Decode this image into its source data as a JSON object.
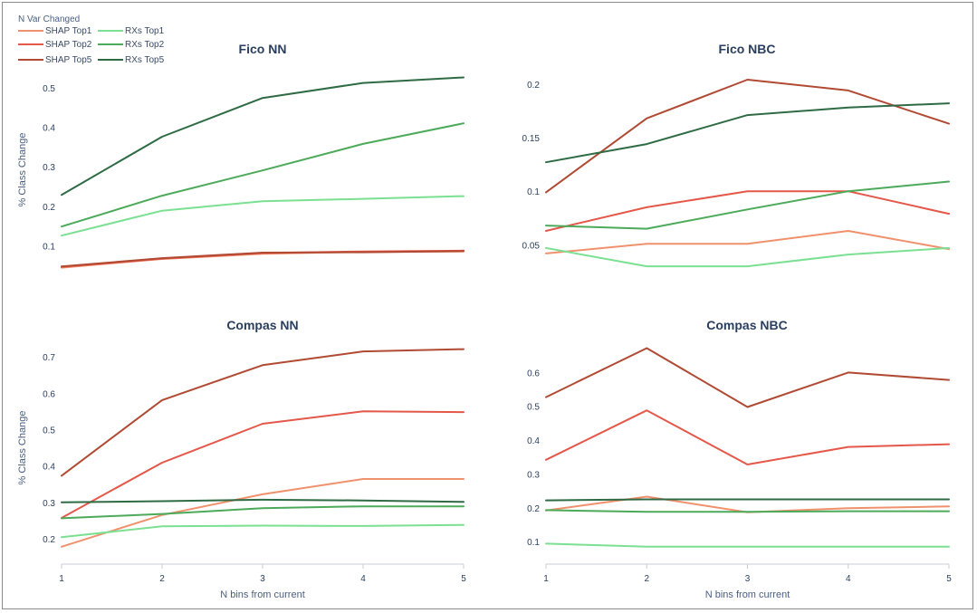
{
  "legend": {
    "title": "N Var Changed",
    "entries": [
      {
        "name": "SHAP Top1",
        "color": "#f0916e"
      },
      {
        "name": "SHAP Top2",
        "color": "#e4584a"
      },
      {
        "name": "SHAP Top5",
        "color": "#b04a33"
      },
      {
        "name": "RXs Top1",
        "color": "#7be092"
      },
      {
        "name": "RXs Top2",
        "color": "#4caa5a"
      },
      {
        "name": "RXs Top5",
        "color": "#2e6b44"
      }
    ]
  },
  "x_axis_title": "N bins from current",
  "y_axis_title": "% Class Change",
  "chart_data": [
    {
      "type": "line",
      "title": "Fico NN",
      "x": [
        1,
        2,
        3,
        4,
        5
      ],
      "ylim": [
        0.035,
        0.55
      ],
      "yticks": [
        0.1,
        0.2,
        0.3,
        0.4,
        0.5
      ],
      "yticklabels": [
        "0.1",
        "0.2",
        "0.3",
        "0.4",
        "0.5"
      ],
      "xticklabels": [],
      "ylabel": "% Class Change",
      "xlabel": "",
      "series": [
        {
          "name": "SHAP Top1",
          "values": [
            0.045,
            0.067,
            0.08,
            0.085,
            0.086
          ]
        },
        {
          "name": "SHAP Top2",
          "values": [
            0.047,
            0.068,
            0.082,
            0.086,
            0.088
          ]
        },
        {
          "name": "SHAP Top5",
          "values": [
            0.048,
            0.069,
            0.083,
            0.084,
            0.087
          ]
        },
        {
          "name": "RXs Top1",
          "values": [
            0.126,
            0.189,
            0.213,
            0.219,
            0.226
          ]
        },
        {
          "name": "RXs Top2",
          "values": [
            0.149,
            0.227,
            0.291,
            0.358,
            0.41
          ]
        },
        {
          "name": "RXs Top5",
          "values": [
            0.229,
            0.376,
            0.474,
            0.512,
            0.526
          ]
        }
      ]
    },
    {
      "type": "line",
      "title": "Fico NBC",
      "x": [
        1,
        2,
        3,
        4,
        5
      ],
      "ylim": [
        0.025,
        0.215
      ],
      "yticks": [
        0.05,
        0.1,
        0.15,
        0.2
      ],
      "yticklabels": [
        "0.05",
        "0.1",
        "0.15",
        "0.2"
      ],
      "xticklabels": [],
      "ylabel": "",
      "xlabel": "",
      "series": [
        {
          "name": "SHAP Top1",
          "values": [
            0.042,
            0.051,
            0.051,
            0.063,
            0.046
          ]
        },
        {
          "name": "SHAP Top2",
          "values": [
            0.063,
            0.085,
            0.1,
            0.1,
            0.079
          ]
        },
        {
          "name": "SHAP Top5",
          "values": [
            0.099,
            0.168,
            0.204,
            0.194,
            0.163
          ]
        },
        {
          "name": "RXs Top1",
          "values": [
            0.047,
            0.03,
            0.03,
            0.041,
            0.047
          ]
        },
        {
          "name": "RXs Top2",
          "values": [
            0.068,
            0.065,
            0.083,
            0.1,
            0.109
          ]
        },
        {
          "name": "RXs Top5",
          "values": [
            0.127,
            0.144,
            0.171,
            0.178,
            0.182
          ]
        }
      ]
    },
    {
      "type": "line",
      "title": "Compas NN",
      "x": [
        1,
        2,
        3,
        4,
        5
      ],
      "ylim": [
        0.15,
        0.75
      ],
      "yticks": [
        0.2,
        0.3,
        0.4,
        0.5,
        0.6,
        0.7
      ],
      "yticklabels": [
        "0.2",
        "0.3",
        "0.4",
        "0.5",
        "0.6",
        "0.7"
      ],
      "xticklabels": [
        "1",
        "2",
        "3",
        "4",
        "5"
      ],
      "ylabel": "% Class Change",
      "xlabel": "N bins from current",
      "series": [
        {
          "name": "SHAP Top1",
          "values": [
            0.178,
            0.265,
            0.322,
            0.364,
            0.364
          ]
        },
        {
          "name": "SHAP Top2",
          "values": [
            0.257,
            0.409,
            0.516,
            0.55,
            0.548
          ]
        },
        {
          "name": "SHAP Top5",
          "values": [
            0.373,
            0.581,
            0.677,
            0.715,
            0.721
          ]
        },
        {
          "name": "RXs Top1",
          "values": [
            0.204,
            0.234,
            0.236,
            0.235,
            0.238
          ]
        },
        {
          "name": "RXs Top2",
          "values": [
            0.256,
            0.268,
            0.284,
            0.289,
            0.289
          ]
        },
        {
          "name": "RXs Top5",
          "values": [
            0.3,
            0.303,
            0.307,
            0.305,
            0.301
          ]
        }
      ]
    },
    {
      "type": "line",
      "title": "Compas NBC",
      "x": [
        1,
        2,
        3,
        4,
        5
      ],
      "ylim": [
        0.055,
        0.7
      ],
      "yticks": [
        0.1,
        0.2,
        0.3,
        0.4,
        0.5,
        0.6
      ],
      "yticklabels": [
        "0.1",
        "0.2",
        "0.3",
        "0.4",
        "0.5",
        "0.6"
      ],
      "xticklabels": [
        "1",
        "2",
        "3",
        "4",
        "5"
      ],
      "ylabel": "",
      "xlabel": "N bins from current",
      "series": [
        {
          "name": "SHAP Top1",
          "values": [
            0.192,
            0.233,
            0.187,
            0.199,
            0.204
          ]
        },
        {
          "name": "SHAP Top2",
          "values": [
            0.342,
            0.488,
            0.328,
            0.38,
            0.388
          ]
        },
        {
          "name": "SHAP Top5",
          "values": [
            0.527,
            0.672,
            0.498,
            0.6,
            0.578
          ]
        },
        {
          "name": "RXs Top1",
          "values": [
            0.094,
            0.085,
            0.085,
            0.085,
            0.085
          ]
        },
        {
          "name": "RXs Top2",
          "values": [
            0.193,
            0.188,
            0.188,
            0.19,
            0.19
          ]
        },
        {
          "name": "RXs Top5",
          "values": [
            0.222,
            0.225,
            0.225,
            0.225,
            0.225
          ]
        }
      ]
    }
  ]
}
